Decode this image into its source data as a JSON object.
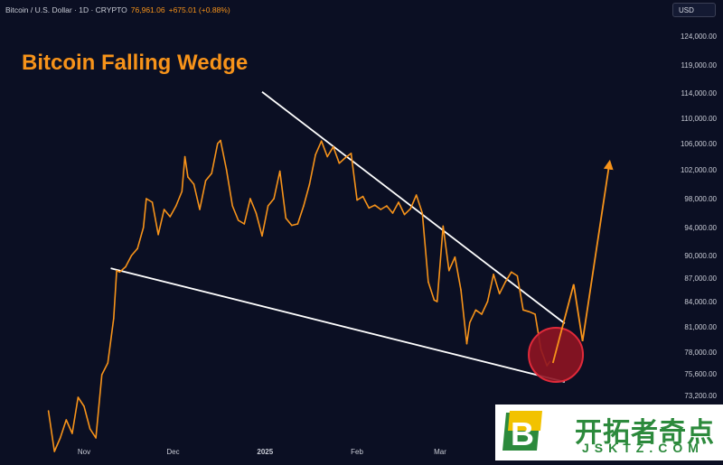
{
  "header": {
    "symbol_line": "Bitcoin / U.S. Dollar · 1D · CRYPTO",
    "last_price": "76,961.06",
    "change": "+675.01 (+0.88%)"
  },
  "currency_button": "USD",
  "watermark": {
    "site_name": "开拓者奇点",
    "domain": "JSKTZ.COM",
    "logo_letter": "B"
  },
  "colors": {
    "background": "#0b0f23",
    "price_line": "#f7931a",
    "trendline": "#ffffff",
    "marker": "#b01c2e",
    "watermark_green": "#2c8a3c"
  },
  "chart_data": {
    "type": "line",
    "title": "Bitcoin Falling Wedge",
    "x_tick_labels": [
      "Nov",
      "Dec",
      "2025",
      "Feb",
      "Mar"
    ],
    "x_tick_dates": [
      "2024-11-01",
      "2024-12-01",
      "2025-01-01",
      "2025-02-01",
      "2025-03-01"
    ],
    "y_tick_values": [
      124000,
      119000,
      114000,
      110000,
      106000,
      102000,
      98000,
      94000,
      90000,
      87000,
      84000,
      81000,
      78000,
      75600,
      73200
    ],
    "y_tick_labels": [
      "124,000.00",
      "119,000.00",
      "114,000.00",
      "110,000.00",
      "106,000.00",
      "102,000.00",
      "98,000.00",
      "94,000.00",
      "90,000.00",
      "87,000.00",
      "84,000.00",
      "81,000.00",
      "78,000.00",
      "75,600.00",
      "73,200.00"
    ],
    "xlim": [
      "2024-10-20",
      "2025-04-30"
    ],
    "series": [
      {
        "x": [
          "2024-10-20",
          "2024-10-22",
          "2024-10-24",
          "2024-10-26",
          "2024-10-28",
          "2024-10-30",
          "2024-11-01",
          "2024-11-03",
          "2024-11-05",
          "2024-11-07",
          "2024-11-09",
          "2024-11-11",
          "2024-11-12",
          "2024-11-13",
          "2024-11-15",
          "2024-11-17",
          "2024-11-19",
          "2024-11-21",
          "2024-11-22",
          "2024-11-24",
          "2024-11-26",
          "2024-11-28",
          "2024-11-30",
          "2024-12-02",
          "2024-12-04",
          "2024-12-05",
          "2024-12-06",
          "2024-12-08",
          "2024-12-10",
          "2024-12-12",
          "2024-12-14",
          "2024-12-16",
          "2024-12-17",
          "2024-12-19",
          "2024-12-21",
          "2024-12-23",
          "2024-12-25",
          "2024-12-27",
          "2024-12-29",
          "2024-12-31",
          "2025-01-02",
          "2025-01-04",
          "2025-01-06",
          "2025-01-08",
          "2025-01-10",
          "2025-01-12",
          "2025-01-14",
          "2025-01-16",
          "2025-01-18",
          "2025-01-20",
          "2025-01-22",
          "2025-01-24",
          "2025-01-26",
          "2025-01-28",
          "2025-01-30",
          "2025-02-01",
          "2025-02-03",
          "2025-02-05",
          "2025-02-07",
          "2025-02-09",
          "2025-02-11",
          "2025-02-13",
          "2025-02-15",
          "2025-02-17",
          "2025-02-19",
          "2025-02-21",
          "2025-02-23",
          "2025-02-25",
          "2025-02-27",
          "2025-02-28",
          "2025-03-02",
          "2025-03-04",
          "2025-03-06",
          "2025-03-08",
          "2025-03-10",
          "2025-03-11",
          "2025-03-13",
          "2025-03-15",
          "2025-03-17",
          "2025-03-19",
          "2025-03-21",
          "2025-03-23",
          "2025-03-25",
          "2025-03-27",
          "2025-03-29",
          "2025-03-31",
          "2025-04-02",
          "2025-04-04",
          "2025-04-06",
          "2025-04-07"
        ],
        "y": [
          71500,
          67000,
          68500,
          70500,
          69000,
          73000,
          72000,
          69500,
          68500,
          75500,
          76800,
          82000,
          88000,
          87800,
          88500,
          90000,
          91000,
          94000,
          98000,
          97500,
          93000,
          96500,
          95500,
          97000,
          99000,
          104000,
          101000,
          100000,
          96500,
          100500,
          101500,
          106000,
          106500,
          102000,
          97000,
          95000,
          94500,
          98000,
          96000,
          92800,
          97000,
          98000,
          101800,
          95300,
          94300,
          94500,
          97000,
          100000,
          104300,
          106400,
          104000,
          105500,
          103000,
          103800,
          104500,
          97800,
          98300,
          96700,
          97100,
          96500,
          97000,
          96000,
          97500,
          95800,
          96600,
          98500,
          96000,
          86500,
          84200,
          84000,
          94200,
          88000,
          89800,
          85500,
          79000,
          81500,
          83000,
          82500,
          84000,
          87500,
          85000,
          86500,
          87800,
          87300,
          83000,
          82800,
          82500,
          78300,
          76500,
          76961
        ]
      }
    ],
    "annotations": [
      {
        "type": "wedge-upper-trendline",
        "from": [
          "2024-12-31",
          114200
        ],
        "to": [
          "2025-04-12",
          81400
        ]
      },
      {
        "type": "wedge-lower-trendline",
        "from": [
          "2024-11-10",
          88300
        ],
        "to": [
          "2025-04-12",
          74700
        ]
      },
      {
        "type": "breakout-marker",
        "at": [
          "2025-04-09",
          77700
        ]
      },
      {
        "type": "projected-path",
        "points": [
          [
            "2025-04-08",
            76800
          ],
          [
            "2025-04-15",
            86200
          ],
          [
            "2025-04-18",
            79300
          ],
          [
            "2025-04-27",
            102800
          ]
        ]
      }
    ]
  }
}
